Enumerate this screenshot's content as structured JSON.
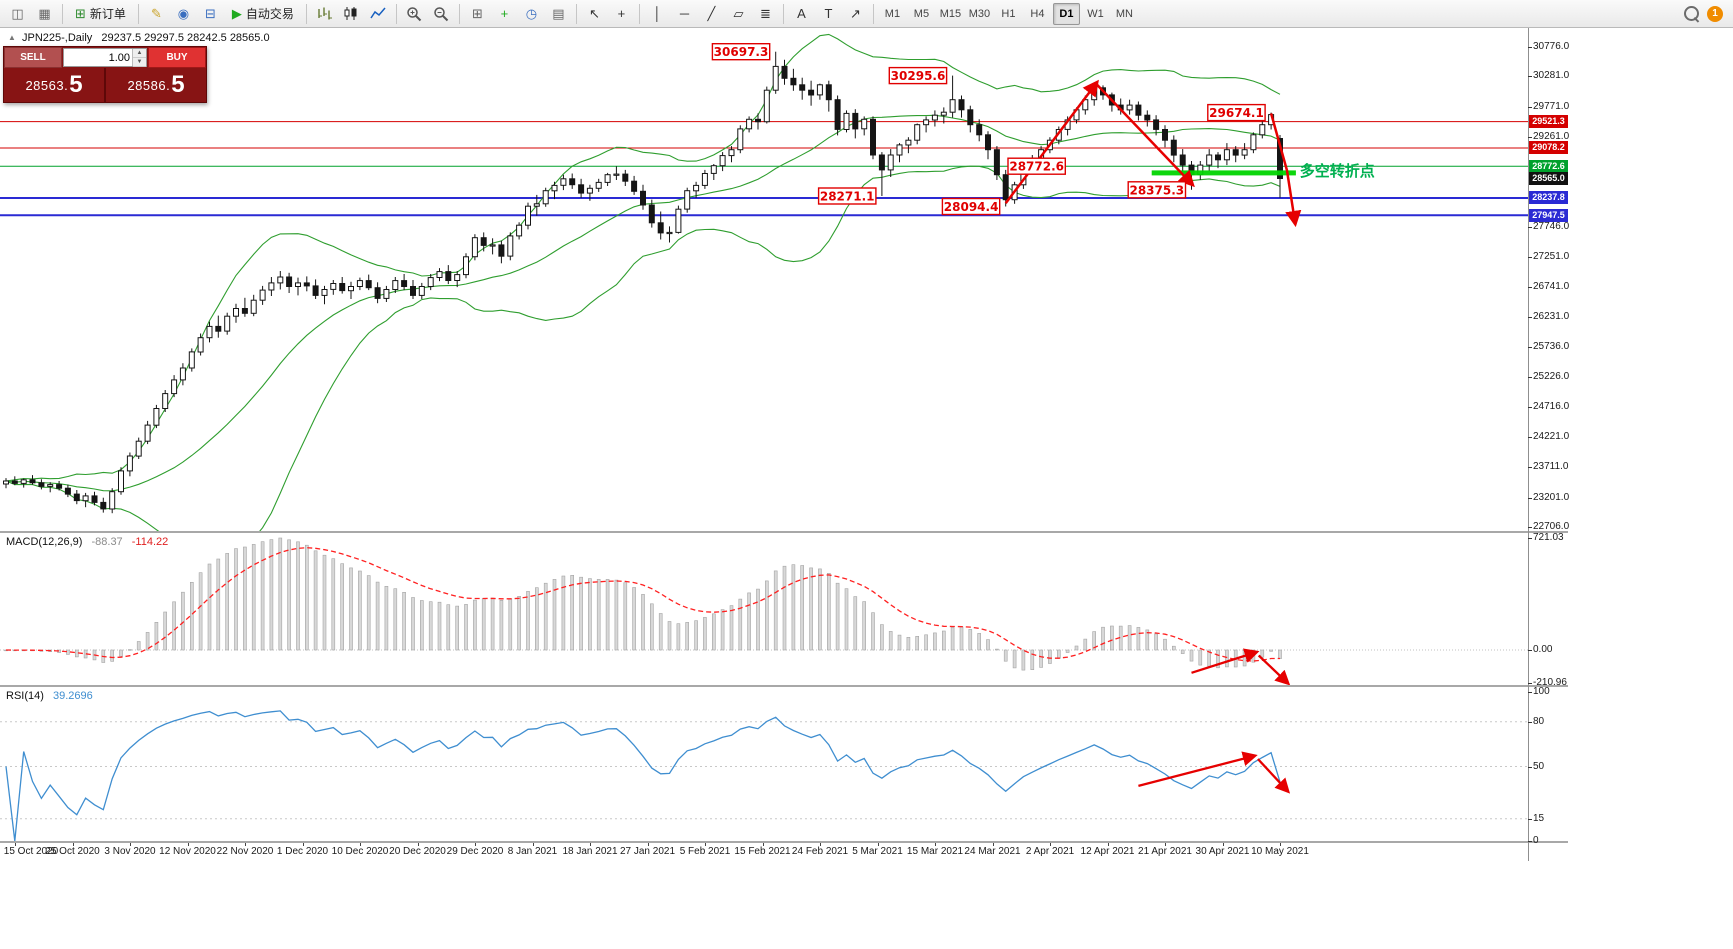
{
  "toolbar": {
    "items": [
      {
        "t": "icon",
        "n": "new-chart",
        "g": "◫",
        "c": "#666"
      },
      {
        "t": "icon",
        "n": "profiles",
        "g": "▦",
        "c": "#666"
      },
      {
        "t": "sep"
      },
      {
        "t": "labelbtn",
        "n": "new-order-button",
        "g": "⊞",
        "gc": "#2e8b2e",
        "label": "新订单"
      },
      {
        "t": "sep"
      },
      {
        "t": "icon",
        "n": "metaeditor",
        "g": "✎",
        "c": "#c9a227"
      },
      {
        "t": "icon",
        "n": "market-watch",
        "g": "◉",
        "c": "#3a6ebf"
      },
      {
        "t": "icon",
        "n": "data-window",
        "g": "⊟",
        "c": "#3a6ebf"
      },
      {
        "t": "labelbtn",
        "n": "autotrading-button",
        "g": "▶",
        "gc": "#1faa1f",
        "label": "自动交易"
      },
      {
        "t": "sep"
      },
      {
        "t": "svgicon",
        "n": "bar-chart-icon",
        "k": "bars"
      },
      {
        "t": "svgicon",
        "n": "candlestick-icon",
        "k": "candles"
      },
      {
        "t": "svgicon",
        "n": "line-chart-icon",
        "k": "line"
      },
      {
        "t": "sep"
      },
      {
        "t": "svgicon",
        "n": "zoom-in-icon",
        "k": "zoomin"
      },
      {
        "t": "svgicon",
        "n": "zoom-out-icon",
        "k": "zoomout"
      },
      {
        "t": "sep"
      },
      {
        "t": "icon",
        "n": "tile-windows",
        "g": "⊞",
        "c": "#666"
      },
      {
        "t": "icon",
        "n": "indicators-add",
        "g": "+",
        "c": "#1faa1f"
      },
      {
        "t": "icon",
        "n": "periods",
        "g": "◷",
        "c": "#3a6ebf"
      },
      {
        "t": "icon",
        "n": "templates",
        "g": "▤",
        "c": "#666"
      },
      {
        "t": "sep"
      },
      {
        "t": "icon",
        "n": "cursor",
        "g": "↖",
        "c": "#333"
      },
      {
        "t": "icon",
        "n": "crosshair",
        "g": "+",
        "c": "#333"
      },
      {
        "t": "sep"
      },
      {
        "t": "icon",
        "n": "vertical-line",
        "g": "│",
        "c": "#333"
      },
      {
        "t": "icon",
        "n": "horizontal-line",
        "g": "─",
        "c": "#333"
      },
      {
        "t": "icon",
        "n": "trendline",
        "g": "╱",
        "c": "#333"
      },
      {
        "t": "icon",
        "n": "equidistant-channel",
        "g": "▱",
        "c": "#333"
      },
      {
        "t": "icon",
        "n": "fibonacci",
        "g": "≣",
        "c": "#333"
      },
      {
        "t": "sep"
      },
      {
        "t": "icon",
        "n": "text-tool",
        "g": "A",
        "c": "#333"
      },
      {
        "t": "icon",
        "n": "label-tool",
        "g": "T",
        "c": "#333"
      },
      {
        "t": "icon",
        "n": "arrows-tool",
        "g": "↗",
        "c": "#333"
      },
      {
        "t": "sep"
      },
      {
        "t": "tfgroup"
      }
    ],
    "timeframes": [
      "M1",
      "M5",
      "M15",
      "M30",
      "H1",
      "H4",
      "D1",
      "W1",
      "MN"
    ],
    "active_timeframe": "D1",
    "badge": "1"
  },
  "window": {
    "title_toggle": "▲",
    "symbol_period": "JPN225-,Daily",
    "ohlc_text": "29237.5 29297.5 28242.5 28565.0"
  },
  "one_click": {
    "sell_label": "SELL",
    "buy_label": "BUY",
    "volume": "1.00",
    "sell_price": "28563.",
    "sell_big": "5",
    "buy_price": "28586.",
    "buy_big": "5"
  },
  "chart_data": {
    "type": "candlestick",
    "symbol": "JPN225-",
    "timeframe": "Daily",
    "x_labels": [
      "15 Oct 2020",
      "25 Oct 2020",
      "3 Nov 2020",
      "12 Nov 2020",
      "22 Nov 2020",
      "1 Dec 2020",
      "10 Dec 2020",
      "20 Dec 2020",
      "29 Dec 2020",
      "8 Jan 2021",
      "18 Jan 2021",
      "27 Jan 2021",
      "5 Feb 2021",
      "15 Feb 2021",
      "24 Feb 2021",
      "5 Mar 2021",
      "15 Mar 2021",
      "24 Mar 2021",
      "2 Apr 2021",
      "12 Apr 2021",
      "21 Apr 2021",
      "30 Apr 2021",
      "10 May 2021"
    ],
    "y_axis": [
      30776,
      30281,
      29771,
      29261,
      27746,
      27251,
      26741,
      26231,
      25736,
      25226,
      24716,
      24221,
      23711,
      23201,
      22706
    ],
    "candles": [
      [
        23430,
        23530,
        23360,
        23480
      ],
      [
        23480,
        23560,
        23410,
        23440
      ],
      [
        23440,
        23520,
        23370,
        23500
      ],
      [
        23500,
        23580,
        23420,
        23450
      ],
      [
        23450,
        23510,
        23340,
        23390
      ],
      [
        23390,
        23460,
        23290,
        23420
      ],
      [
        23420,
        23480,
        23320,
        23360
      ],
      [
        23360,
        23420,
        23210,
        23260
      ],
      [
        23260,
        23330,
        23090,
        23150
      ],
      [
        23150,
        23280,
        23040,
        23230
      ],
      [
        23230,
        23300,
        23070,
        23120
      ],
      [
        23120,
        23200,
        22950,
        23010
      ],
      [
        23010,
        23360,
        22940,
        23300
      ],
      [
        23300,
        23710,
        23250,
        23650
      ],
      [
        23650,
        23960,
        23560,
        23900
      ],
      [
        23900,
        24210,
        23850,
        24150
      ],
      [
        24150,
        24490,
        24100,
        24420
      ],
      [
        24420,
        24760,
        24370,
        24700
      ],
      [
        24700,
        25010,
        24640,
        24950
      ],
      [
        24950,
        25260,
        24890,
        25180
      ],
      [
        25180,
        25460,
        25090,
        25380
      ],
      [
        25380,
        25710,
        25320,
        25650
      ],
      [
        25650,
        25960,
        25590,
        25890
      ],
      [
        25890,
        26160,
        25810,
        26080
      ],
      [
        26080,
        26260,
        25890,
        26000
      ],
      [
        26000,
        26310,
        25940,
        26250
      ],
      [
        26250,
        26460,
        26140,
        26380
      ],
      [
        26380,
        26560,
        26240,
        26300
      ],
      [
        26300,
        26610,
        26250,
        26520
      ],
      [
        26520,
        26760,
        26440,
        26690
      ],
      [
        26690,
        26910,
        26590,
        26810
      ],
      [
        26810,
        27010,
        26700,
        26910
      ],
      [
        26910,
        26980,
        26640,
        26750
      ],
      [
        26750,
        26900,
        26600,
        26810
      ],
      [
        26810,
        26920,
        26670,
        26760
      ],
      [
        26760,
        26870,
        26540,
        26600
      ],
      [
        26600,
        26760,
        26450,
        26700
      ],
      [
        26700,
        26860,
        26610,
        26800
      ],
      [
        26800,
        26910,
        26630,
        26680
      ],
      [
        26680,
        26830,
        26540,
        26750
      ],
      [
        26750,
        26900,
        26690,
        26850
      ],
      [
        26850,
        26950,
        26690,
        26730
      ],
      [
        26730,
        26820,
        26470,
        26550
      ],
      [
        26550,
        26760,
        26490,
        26700
      ],
      [
        26700,
        26910,
        26640,
        26850
      ],
      [
        26850,
        26960,
        26690,
        26750
      ],
      [
        26750,
        26860,
        26540,
        26600
      ],
      [
        26600,
        26810,
        26540,
        26750
      ],
      [
        26750,
        26960,
        26690,
        26900
      ],
      [
        26900,
        27060,
        26840,
        27000
      ],
      [
        27000,
        27110,
        26790,
        26850
      ],
      [
        26850,
        27010,
        26740,
        26950
      ],
      [
        26950,
        27310,
        26890,
        27250
      ],
      [
        27250,
        27630,
        27190,
        27570
      ],
      [
        27570,
        27660,
        27340,
        27440
      ],
      [
        27440,
        27560,
        27290,
        27450
      ],
      [
        27450,
        27520,
        27140,
        27260
      ],
      [
        27260,
        27660,
        27190,
        27600
      ],
      [
        27600,
        27830,
        27540,
        27780
      ],
      [
        27780,
        28160,
        27710,
        28100
      ],
      [
        28100,
        28290,
        27940,
        28140
      ],
      [
        28140,
        28410,
        28090,
        28360
      ],
      [
        28360,
        28510,
        28220,
        28450
      ],
      [
        28450,
        28630,
        28370,
        28560
      ],
      [
        28560,
        28650,
        28390,
        28460
      ],
      [
        28460,
        28560,
        28240,
        28320
      ],
      [
        28320,
        28460,
        28190,
        28400
      ],
      [
        28400,
        28560,
        28340,
        28500
      ],
      [
        28500,
        28660,
        28440,
        28630
      ],
      [
        28630,
        28770,
        28540,
        28640
      ],
      [
        28640,
        28710,
        28440,
        28520
      ],
      [
        28520,
        28610,
        28290,
        28350
      ],
      [
        28350,
        28460,
        28040,
        28120
      ],
      [
        28120,
        28210,
        27740,
        27820
      ],
      [
        27820,
        28010,
        27540,
        27650
      ],
      [
        27650,
        27760,
        27490,
        27660
      ],
      [
        27660,
        28110,
        27640,
        28050
      ],
      [
        28050,
        28410,
        27990,
        28360
      ],
      [
        28360,
        28510,
        28240,
        28450
      ],
      [
        28450,
        28710,
        28390,
        28650
      ],
      [
        28650,
        28810,
        28540,
        28780
      ],
      [
        28780,
        29010,
        28690,
        28950
      ],
      [
        28950,
        29110,
        28840,
        29050
      ],
      [
        29050,
        29460,
        28990,
        29400
      ],
      [
        29400,
        29610,
        29340,
        29560
      ],
      [
        29560,
        29660,
        29390,
        29520
      ],
      [
        29520,
        30110,
        29490,
        30050
      ],
      [
        30050,
        30697,
        29990,
        30450
      ],
      [
        30450,
        30560,
        30140,
        30250
      ],
      [
        30250,
        30410,
        30040,
        30140
      ],
      [
        30140,
        30260,
        29890,
        30050
      ],
      [
        30050,
        30210,
        29790,
        29970
      ],
      [
        29970,
        30160,
        29890,
        30140
      ],
      [
        30140,
        30210,
        29690,
        29890
      ],
      [
        29890,
        29960,
        29290,
        29390
      ],
      [
        29390,
        29710,
        29340,
        29660
      ],
      [
        29660,
        29730,
        29240,
        29400
      ],
      [
        29400,
        29610,
        29290,
        29560
      ],
      [
        29560,
        29610,
        28890,
        28960
      ],
      [
        28960,
        29010,
        28271,
        28710
      ],
      [
        28710,
        29060,
        28590,
        28960
      ],
      [
        28960,
        29160,
        28840,
        29130
      ],
      [
        29130,
        29260,
        28990,
        29210
      ],
      [
        29210,
        29490,
        29140,
        29470
      ],
      [
        29470,
        29610,
        29340,
        29550
      ],
      [
        29550,
        29710,
        29440,
        29630
      ],
      [
        29630,
        29760,
        29490,
        29680
      ],
      [
        29680,
        30296,
        29590,
        29890
      ],
      [
        29890,
        29960,
        29590,
        29720
      ],
      [
        29720,
        29790,
        29340,
        29470
      ],
      [
        29470,
        29560,
        29190,
        29300
      ],
      [
        29300,
        29360,
        28890,
        29050
      ],
      [
        29050,
        29110,
        28540,
        28630
      ],
      [
        28630,
        28710,
        28094,
        28210
      ],
      [
        28210,
        28510,
        28140,
        28460
      ],
      [
        28460,
        28760,
        28390,
        28710
      ],
      [
        28710,
        28960,
        28640,
        28880
      ],
      [
        28880,
        29110,
        28790,
        29050
      ],
      [
        29050,
        29260,
        28990,
        29210
      ],
      [
        29210,
        29440,
        29140,
        29390
      ],
      [
        29390,
        29610,
        29290,
        29550
      ],
      [
        29550,
        29760,
        29490,
        29720
      ],
      [
        29720,
        29960,
        29640,
        29890
      ],
      [
        29890,
        30140,
        29790,
        30090
      ],
      [
        30090,
        30130,
        29890,
        29970
      ],
      [
        29970,
        30010,
        29690,
        29800
      ],
      [
        29800,
        29910,
        29640,
        29720
      ],
      [
        29720,
        29890,
        29640,
        29800
      ],
      [
        29800,
        29860,
        29540,
        29630
      ],
      [
        29630,
        29710,
        29440,
        29550
      ],
      [
        29550,
        29630,
        29290,
        29390
      ],
      [
        29390,
        29460,
        29090,
        29210
      ],
      [
        29210,
        29290,
        28840,
        28960
      ],
      [
        28960,
        29060,
        28690,
        28790
      ],
      [
        28790,
        28860,
        28375,
        28630
      ],
      [
        28630,
        28860,
        28540,
        28790
      ],
      [
        28790,
        29060,
        28690,
        28960
      ],
      [
        28960,
        29010,
        28740,
        28880
      ],
      [
        28880,
        29160,
        28790,
        29050
      ],
      [
        29050,
        29110,
        28840,
        28960
      ],
      [
        28960,
        29160,
        28890,
        29050
      ],
      [
        29050,
        29340,
        28990,
        29300
      ],
      [
        29300,
        29530,
        29240,
        29470
      ],
      [
        29470,
        29674,
        29390,
        29640
      ],
      [
        29237.5,
        29297.5,
        28242.5,
        28565
      ]
    ],
    "bollinger": {
      "period": 20,
      "deviation": 2,
      "color": "#2f9e2f"
    },
    "levels": [
      {
        "price": 29521.3,
        "color": "#d40000",
        "width": 1
      },
      {
        "price": 29078.2,
        "color": "#d40000",
        "width": 1
      },
      {
        "price": 28772.6,
        "color": "#00a12c",
        "width": 1
      },
      {
        "price": 28237.8,
        "color": "#2a2ad4",
        "width": 2
      },
      {
        "price": 27947.5,
        "color": "#2a2ad4",
        "width": 2
      }
    ],
    "price_tags": [
      {
        "text": "29521.3",
        "price": 29521.3,
        "bg": "#d40000"
      },
      {
        "text": "29078.2",
        "price": 29078.2,
        "bg": "#d40000"
      },
      {
        "text": "28772.6",
        "price": 28772.6,
        "bg": "#00a12c"
      },
      {
        "text": "28565.0",
        "price": 28565.0,
        "bg": "#111111"
      },
      {
        "text": "28237.8",
        "price": 28237.8,
        "bg": "#2a2ad4"
      },
      {
        "text": "27947.5",
        "price": 27947.5,
        "bg": "#2a2ad4"
      }
    ],
    "swing_labels": [
      {
        "text": "30697.3",
        "i": 87,
        "price": 30697,
        "side": "left"
      },
      {
        "text": "30295.6",
        "i": 107,
        "price": 30296,
        "side": "left"
      },
      {
        "text": "29674.1",
        "i": 143,
        "price": 29674,
        "side": "left"
      },
      {
        "text": "28772.6",
        "i": 116.5,
        "price": 28772.6,
        "side": "center"
      },
      {
        "text": "28271.1",
        "i": 99,
        "price": 28271,
        "side": "left"
      },
      {
        "text": "28094.4",
        "i": 113,
        "price": 28094,
        "side": "left"
      },
      {
        "text": "28375.3",
        "i": 134,
        "price": 28375,
        "side": "left"
      }
    ],
    "support_band": {
      "i1": 129.5,
      "i2": 145.8,
      "price": 28660,
      "color": "#00d400"
    },
    "note": {
      "text": "多空转折点",
      "i": 145.9,
      "price": 28690,
      "color": "#00b050"
    },
    "arrow_color": "#e60000",
    "arrows_price": [
      [
        [
          113,
          28150
        ],
        [
          123.2,
          30160
        ]
      ],
      [
        [
          123.2,
          30160
        ],
        [
          134,
          28480
        ]
      ],
      [
        [
          143,
          29660
        ],
        [
          144.8,
          28700
        ],
        [
          145.7,
          27830
        ]
      ]
    ],
    "macd": {
      "label": "MACD(12,26,9)",
      "fast": 12,
      "slow": 26,
      "signal": 9,
      "value": "-88.37",
      "signal_value": "-114.22",
      "axis": [
        {
          "text": "721.03",
          "v": 721.03
        },
        {
          "text": "0.00",
          "v": 0
        },
        {
          "text": "-210.96",
          "v": -210.96
        }
      ],
      "arrows": [
        [
          [
            134,
            -165
          ],
          [
            141.2,
            -18
          ]
        ],
        [
          [
            141.6,
            -40
          ],
          [
            144.8,
            -235
          ]
        ]
      ]
    },
    "rsi": {
      "label": "RSI(14)",
      "period": 14,
      "value": "39.2696",
      "levels": [
        80,
        50,
        15
      ],
      "axis": [
        {
          "text": "100",
          "v": 100
        },
        {
          "text": "80",
          "v": 80
        },
        {
          "text": "50",
          "v": 50
        },
        {
          "text": "15",
          "v": 15
        },
        {
          "text": "0",
          "v": 0
        }
      ],
      "arrows": [
        [
          [
            128,
            37
          ],
          [
            141,
            57
          ]
        ],
        [
          [
            141.5,
            55
          ],
          [
            144.8,
            34
          ]
        ]
      ]
    }
  }
}
